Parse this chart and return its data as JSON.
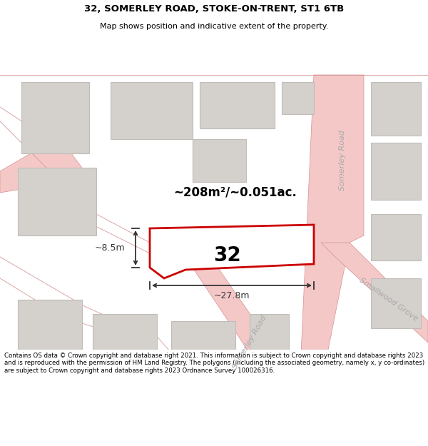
{
  "title_line1": "32, SOMERLEY ROAD, STOKE-ON-TRENT, ST1 6TB",
  "title_line2": "Map shows position and indicative extent of the property.",
  "footer_text": "Contains OS data © Crown copyright and database right 2021. This information is subject to Crown copyright and database rights 2023 and is reproduced with the permission of HM Land Registry. The polygons (including the associated geometry, namely x, y co-ordinates) are subject to Crown copyright and database rights 2023 Ordnance Survey 100026316.",
  "area_text": "~208m²/~0.051ac.",
  "label_32": "32",
  "dim_width": "~27.8m",
  "dim_height": "~8.5m",
  "map_bg": "#f2eeeb",
  "plot_fill": "#ffffff",
  "plot_edge": "#cc0000",
  "road_color": "#f5c8c8",
  "road_edge": "#d49090",
  "building_fill": "#d4d0cc",
  "building_edge": "#c0bcb8",
  "road_label_color": "#aaaaaa",
  "dim_color": "#333333"
}
